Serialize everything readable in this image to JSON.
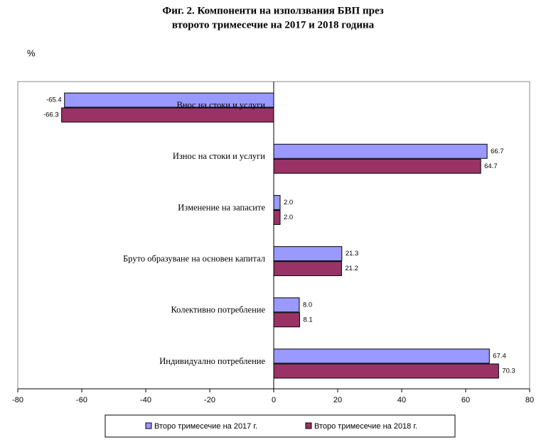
{
  "chart_data": {
    "type": "hbar",
    "title": [
      "Фиг. 2. Компоненти на използвания БВП през",
      "второто тримесечие на 2017 и 2018 година"
    ],
    "y_label": "%",
    "categories": [
      "Внос на стоки и услуги",
      "Износ на стоки и услуги",
      "Изменение на запасите",
      "Бруто образуване на основен капитал",
      "Колективно потребление",
      "Индивидуално потребление"
    ],
    "series": [
      {
        "name": "Второ тримесечие на 2017 г.",
        "color": "#9999ff",
        "values": [
          -65.4,
          66.7,
          2.0,
          21.3,
          8.0,
          67.4
        ],
        "value_labels": [
          "-65.4",
          "66.7",
          "2.0",
          "21.3",
          "8.0",
          "67.4"
        ]
      },
      {
        "name": "Второ тримесечие на 2018 г.",
        "color": "#993366",
        "values": [
          -66.3,
          64.7,
          2.0,
          21.2,
          8.1,
          70.3
        ],
        "value_labels": [
          "-66.3",
          "64.7",
          "2.0",
          "21.2",
          "8.1",
          "70.3"
        ]
      }
    ],
    "xlim": [
      -80,
      80
    ],
    "xticks": [
      -80,
      -60,
      -40,
      -20,
      0,
      20,
      40,
      60,
      80
    ],
    "grid": false
  }
}
